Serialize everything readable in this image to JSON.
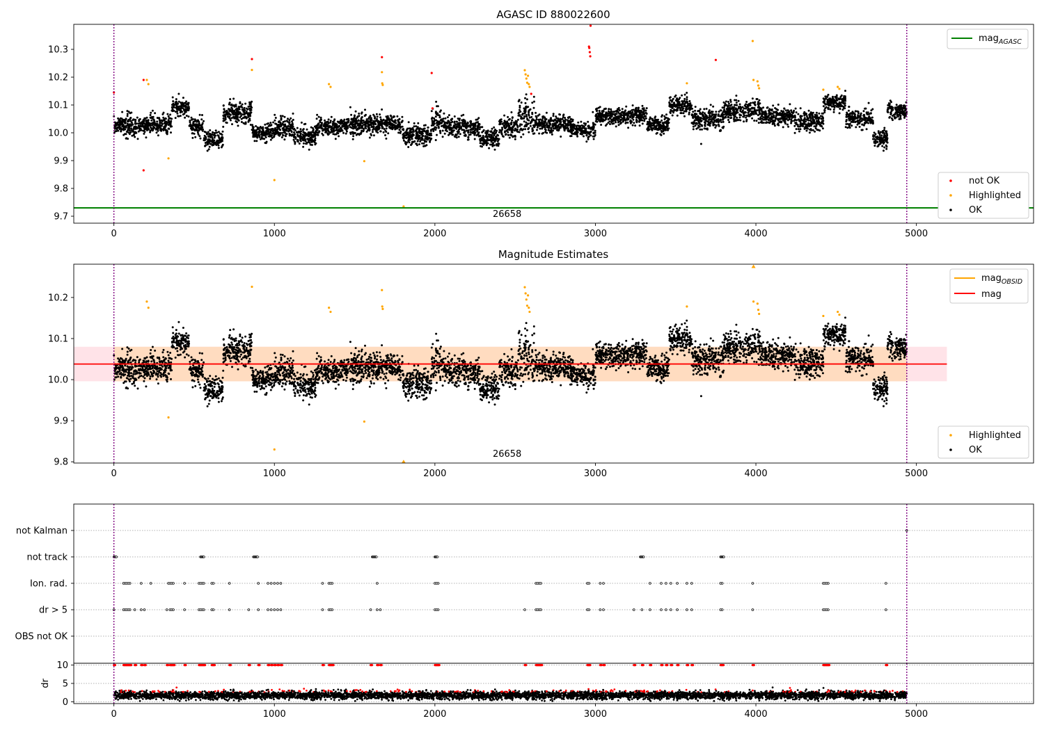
{
  "figure": {
    "x_ticks": [
      0,
      1000,
      2000,
      3000,
      4000,
      5000
    ],
    "x_range": [
      -250,
      5730
    ],
    "obs_boundaries": [
      0,
      4940
    ],
    "obsid_label": "26658",
    "obsid_label_x": 2450
  },
  "colors": {
    "ok": "#000000",
    "highlighted": "#ffa500",
    "not_ok": "#ff0000",
    "mag_agasc": "#008000",
    "mag_obsid": "#ffa500",
    "mag": "#ff0000",
    "band_outer": "#ffc0cb",
    "band_inner": "#ffdab9",
    "boundary": "#800080"
  },
  "chart_data": [
    {
      "type": "scatter",
      "title": "AGASC ID 880022600",
      "xlabel": "",
      "ylabel": "",
      "xlim": [
        -250,
        5730
      ],
      "ylim": [
        9.675,
        10.39
      ],
      "y_ticks": [
        9.7,
        9.8,
        9.9,
        10.0,
        10.1,
        10.2,
        10.3
      ],
      "legend_top": {
        "position": "top-right",
        "entries": [
          {
            "label": "mag",
            "sub": "AGASC",
            "style": "line",
            "color": "#008000"
          }
        ]
      },
      "legend_bottom": {
        "position": "bottom-right",
        "entries": [
          {
            "label": "not OK",
            "style": "dot",
            "color": "#ff0000"
          },
          {
            "label": "Highlighted",
            "style": "dot",
            "color": "#ffa500"
          },
          {
            "label": "OK",
            "style": "dot",
            "color": "#000000"
          }
        ]
      },
      "hlines": [
        {
          "name": "mag_AGASC",
          "y": 9.73,
          "x_start": -250,
          "x_end": 5730,
          "color": "#008000"
        }
      ],
      "ok_segments": [
        {
          "x": [
            0,
            60
          ],
          "mean": 10.03,
          "spread": 0.02
        },
        {
          "x": [
            60,
            150
          ],
          "mean": 10.02,
          "spread": 0.03
        },
        {
          "x": [
            150,
            250
          ],
          "mean": 10.03,
          "spread": 0.025
        },
        {
          "x": [
            250,
            360
          ],
          "mean": 10.03,
          "spread": 0.02
        },
        {
          "x": [
            360,
            470
          ],
          "mean": 10.09,
          "spread": 0.02
        },
        {
          "x": [
            470,
            560
          ],
          "mean": 10.02,
          "spread": 0.02
        },
        {
          "x": [
            560,
            680
          ],
          "mean": 9.975,
          "spread": 0.02
        },
        {
          "x": [
            680,
            860
          ],
          "mean": 10.07,
          "spread": 0.025
        },
        {
          "x": [
            860,
            1000
          ],
          "mean": 10.0,
          "spread": 0.02
        },
        {
          "x": [
            1000,
            1120
          ],
          "mean": 10.02,
          "spread": 0.025
        },
        {
          "x": [
            1120,
            1260
          ],
          "mean": 9.99,
          "spread": 0.025
        },
        {
          "x": [
            1260,
            1450
          ],
          "mean": 10.02,
          "spread": 0.02
        },
        {
          "x": [
            1450,
            1640
          ],
          "mean": 10.03,
          "spread": 0.025
        },
        {
          "x": [
            1640,
            1800
          ],
          "mean": 10.03,
          "spread": 0.02
        },
        {
          "x": [
            1800,
            1980
          ],
          "mean": 9.99,
          "spread": 0.025
        },
        {
          "x": [
            1980,
            2060
          ],
          "mean": 10.04,
          "spread": 0.03
        },
        {
          "x": [
            2060,
            2280
          ],
          "mean": 10.02,
          "spread": 0.025
        },
        {
          "x": [
            2280,
            2400
          ],
          "mean": 9.98,
          "spread": 0.02
        },
        {
          "x": [
            2400,
            2520
          ],
          "mean": 10.02,
          "spread": 0.025
        },
        {
          "x": [
            2520,
            2620
          ],
          "mean": 10.06,
          "spread": 0.04
        },
        {
          "x": [
            2620,
            2850
          ],
          "mean": 10.03,
          "spread": 0.02
        },
        {
          "x": [
            2850,
            3000
          ],
          "mean": 10.01,
          "spread": 0.02
        },
        {
          "x": [
            3000,
            3320
          ],
          "mean": 10.06,
          "spread": 0.02
        },
        {
          "x": [
            3320,
            3460
          ],
          "mean": 10.03,
          "spread": 0.02
        },
        {
          "x": [
            3460,
            3600
          ],
          "mean": 10.1,
          "spread": 0.02
        },
        {
          "x": [
            3600,
            3800
          ],
          "mean": 10.05,
          "spread": 0.025
        },
        {
          "x": [
            3800,
            4030
          ],
          "mean": 10.08,
          "spread": 0.025
        },
        {
          "x": [
            4030,
            4240
          ],
          "mean": 10.06,
          "spread": 0.02
        },
        {
          "x": [
            4240,
            4420
          ],
          "mean": 10.04,
          "spread": 0.025
        },
        {
          "x": [
            4420,
            4560
          ],
          "mean": 10.11,
          "spread": 0.02
        },
        {
          "x": [
            4560,
            4730
          ],
          "mean": 10.05,
          "spread": 0.02
        },
        {
          "x": [
            4730,
            4820
          ],
          "mean": 9.98,
          "spread": 0.02
        },
        {
          "x": [
            4820,
            4940
          ],
          "mean": 10.08,
          "spread": 0.02
        }
      ],
      "highlighted_points": [
        {
          "x": 340,
          "y": 9.908
        },
        {
          "x": 205,
          "y": 10.19
        },
        {
          "x": 215,
          "y": 10.175
        },
        {
          "x": 860,
          "y": 10.226
        },
        {
          "x": 1000,
          "y": 9.83
        },
        {
          "x": 1340,
          "y": 10.175
        },
        {
          "x": 1350,
          "y": 10.165
        },
        {
          "x": 1560,
          "y": 9.898
        },
        {
          "x": 1670,
          "y": 10.218
        },
        {
          "x": 1672,
          "y": 10.178
        },
        {
          "x": 1675,
          "y": 10.172
        },
        {
          "x": 1805,
          "y": 9.735
        },
        {
          "x": 2560,
          "y": 10.225
        },
        {
          "x": 2565,
          "y": 10.21
        },
        {
          "x": 2570,
          "y": 10.195
        },
        {
          "x": 2575,
          "y": 10.18
        },
        {
          "x": 2580,
          "y": 10.205
        },
        {
          "x": 2585,
          "y": 10.175
        },
        {
          "x": 2590,
          "y": 10.165
        },
        {
          "x": 3570,
          "y": 10.178
        },
        {
          "x": 3980,
          "y": 10.33
        },
        {
          "x": 3985,
          "y": 10.19
        },
        {
          "x": 4010,
          "y": 10.185
        },
        {
          "x": 4015,
          "y": 10.17
        },
        {
          "x": 4020,
          "y": 10.16
        },
        {
          "x": 4420,
          "y": 10.155
        },
        {
          "x": 4510,
          "y": 10.165
        },
        {
          "x": 4520,
          "y": 10.158
        }
      ],
      "not_ok_points": [
        {
          "x": 0,
          "y": 10.145
        },
        {
          "x": 185,
          "y": 10.19
        },
        {
          "x": 185,
          "y": 9.865
        },
        {
          "x": 860,
          "y": 10.265
        },
        {
          "x": 1670,
          "y": 10.272
        },
        {
          "x": 1980,
          "y": 10.215
        },
        {
          "x": 1985,
          "y": 10.088
        },
        {
          "x": 2600,
          "y": 10.14
        },
        {
          "x": 2960,
          "y": 10.31
        },
        {
          "x": 2962,
          "y": 10.305
        },
        {
          "x": 2965,
          "y": 10.29
        },
        {
          "x": 2968,
          "y": 10.275
        },
        {
          "x": 2970,
          "y": 10.385
        },
        {
          "x": 3750,
          "y": 10.262
        }
      ]
    },
    {
      "type": "scatter",
      "title": "Magnitude Estimates",
      "xlabel": "",
      "ylabel": "",
      "xlim": [
        -250,
        5730
      ],
      "ylim": [
        9.797,
        10.281
      ],
      "y_ticks": [
        9.8,
        9.9,
        10.0,
        10.1,
        10.2
      ],
      "legend_top": {
        "position": "top-right",
        "entries": [
          {
            "label": "mag",
            "sub": "OBSID",
            "style": "line",
            "color": "#ffa500"
          },
          {
            "label": "mag",
            "style": "line",
            "color": "#ff0000"
          }
        ]
      },
      "legend_bottom": {
        "position": "bottom-right",
        "entries": [
          {
            "label": "Highlighted",
            "style": "dot",
            "color": "#ffa500"
          },
          {
            "label": "OK",
            "style": "dot",
            "color": "#000000"
          }
        ]
      },
      "mag": 10.038,
      "mag_band": [
        9.996,
        10.08
      ],
      "mag_band_xrange": [
        -250,
        5190
      ],
      "obsid_band": [
        9.996,
        10.08
      ],
      "obsid_band_xrange": [
        0,
        4940
      ],
      "offscale_markers": [
        {
          "x": 3985,
          "y": 10.275
        },
        {
          "x": 1805,
          "y": 9.8
        }
      ]
    },
    {
      "type": "scatter",
      "title": "",
      "xlabel": "",
      "ylabel": "",
      "xlim": [
        -250,
        5730
      ],
      "categories": [
        "not Kalman",
        "not track",
        "Ion. rad.",
        "dr > 5",
        "OBS not OK"
      ],
      "flags": {
        "not Kalman": [
          4940
        ],
        "not track": [
          0,
          5,
          10,
          15,
          540,
          545,
          550,
          555,
          560,
          870,
          875,
          880,
          885,
          890,
          895,
          1610,
          1615,
          1620,
          1625,
          1630,
          1635,
          2000,
          2005,
          2010,
          2015,
          3280,
          3285,
          3290,
          3295,
          3300,
          3780,
          3785,
          3790,
          3795,
          3800
        ],
        "Ion. rad.": [
          60,
          70,
          80,
          90,
          100,
          170,
          230,
          340,
          350,
          360,
          370,
          440,
          530,
          540,
          550,
          560,
          610,
          620,
          720,
          900,
          960,
          980,
          1000,
          1020,
          1040,
          1300,
          1340,
          1350,
          1360,
          1640,
          2000,
          2010,
          2020,
          2630,
          2640,
          2650,
          2660,
          2950,
          2960,
          3030,
          3050,
          3340,
          3410,
          3440,
          3470,
          3510,
          3570,
          3600,
          3780,
          3790,
          3980,
          4420,
          4430,
          4440,
          4450,
          4810
        ],
        "dr > 5": [
          0,
          60,
          70,
          80,
          90,
          100,
          130,
          170,
          190,
          330,
          350,
          360,
          370,
          440,
          530,
          540,
          550,
          560,
          610,
          620,
          720,
          840,
          900,
          960,
          980,
          1000,
          1020,
          1040,
          1300,
          1340,
          1350,
          1360,
          1600,
          1640,
          1660,
          2000,
          2010,
          2020,
          2560,
          2630,
          2640,
          2650,
          2660,
          2950,
          2960,
          3030,
          3050,
          3240,
          3290,
          3340,
          3410,
          3440,
          3470,
          3510,
          3570,
          3600,
          3780,
          3790,
          3980,
          4420,
          4430,
          4440,
          4450,
          4810
        ],
        "OBS not OK": []
      }
    },
    {
      "type": "scatter",
      "title": "",
      "xlabel": "",
      "ylabel": "dr",
      "xlim": [
        -250,
        5730
      ],
      "ylim": [
        -0.5,
        10.5
      ],
      "y_ticks": [
        0,
        5,
        10
      ],
      "typical_dr": 1.8,
      "clipped_value": 10
    }
  ]
}
